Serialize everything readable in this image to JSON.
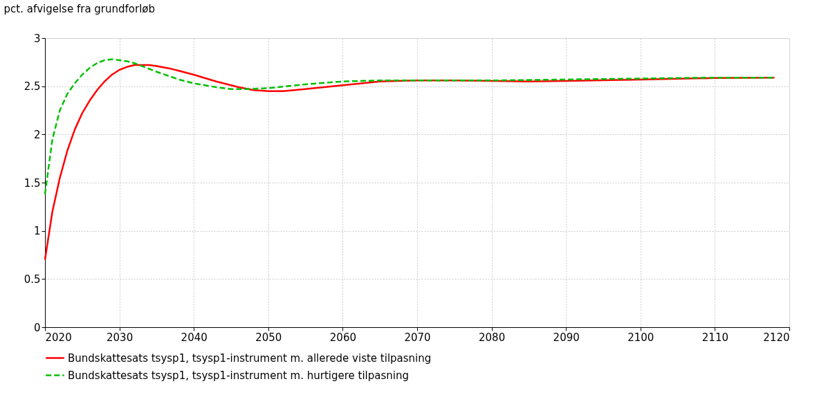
{
  "chart_data": {
    "type": "line",
    "ylabel": "pct. afvigelse fra grundforløb",
    "xlim": [
      2020,
      2120
    ],
    "xticks": [
      2020,
      2030,
      2040,
      2050,
      2060,
      2070,
      2080,
      2090,
      2100,
      2110,
      2120
    ],
    "ylim": [
      0,
      3
    ],
    "yticks": [
      0,
      0.5,
      1,
      1.5,
      2,
      2.5,
      3
    ],
    "grid": true,
    "legend": "bottom",
    "marker": "none",
    "series": [
      {
        "name": "Bundskattesats tsysp1, tsysp1-instrument m. allerede viste tilpasning",
        "color": "#ff0000",
        "line_style": "solid",
        "x": [
          2020,
          2021,
          2022,
          2023,
          2024,
          2025,
          2026,
          2027,
          2028,
          2029,
          2030,
          2031,
          2032,
          2033,
          2034,
          2035,
          2037,
          2040,
          2043,
          2046,
          2048,
          2050,
          2052,
          2055,
          2060,
          2065,
          2070,
          2075,
          2080,
          2085,
          2090,
          2100,
          2110,
          2118
        ],
        "values": [
          0.7,
          1.2,
          1.55,
          1.83,
          2.05,
          2.22,
          2.35,
          2.46,
          2.55,
          2.62,
          2.67,
          2.7,
          2.72,
          2.72,
          2.72,
          2.71,
          2.68,
          2.62,
          2.55,
          2.49,
          2.46,
          2.45,
          2.45,
          2.47,
          2.51,
          2.55,
          2.56,
          2.56,
          2.555,
          2.55,
          2.555,
          2.57,
          2.585,
          2.59
        ]
      },
      {
        "name": "Bundskattesats tsysp1, tsysp1-instrument m. hurtigere tilpasning",
        "color": "#00c000",
        "line_style": "dashed",
        "x": [
          2020,
          2021,
          2022,
          2023,
          2024,
          2025,
          2026,
          2027,
          2028,
          2029,
          2030,
          2031,
          2032,
          2033,
          2035,
          2038,
          2040,
          2043,
          2045,
          2047,
          2050,
          2055,
          2060,
          2065,
          2070,
          2080,
          2090,
          2100,
          2110,
          2118
        ],
        "values": [
          1.38,
          1.95,
          2.25,
          2.42,
          2.53,
          2.62,
          2.69,
          2.74,
          2.77,
          2.78,
          2.77,
          2.76,
          2.74,
          2.71,
          2.65,
          2.57,
          2.53,
          2.49,
          2.47,
          2.47,
          2.48,
          2.52,
          2.55,
          2.56,
          2.56,
          2.56,
          2.57,
          2.58,
          2.59,
          2.59
        ]
      }
    ]
  }
}
